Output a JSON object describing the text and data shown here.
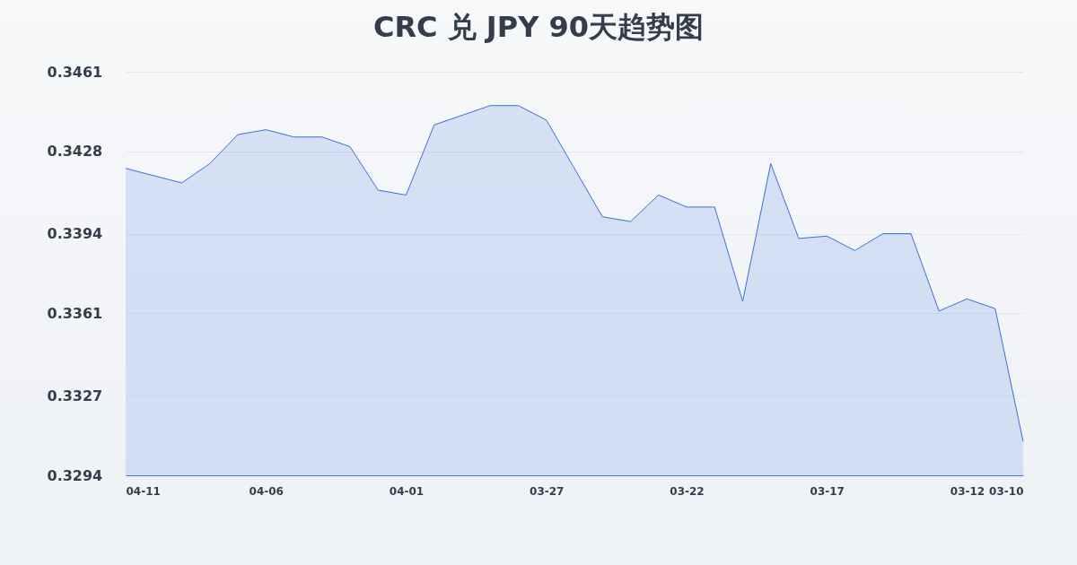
{
  "chart_data": {
    "type": "area",
    "title": "CRC 兑 JPY 90天趋势图",
    "x": [
      "--04-11",
      "--04-09",
      "--04-08",
      "--04-07",
      "--04-06",
      "--04-05",
      "--04-04",
      "--04-03",
      "--04-02",
      "--04-01",
      "--03-31",
      "--03-29",
      "--03-28",
      "--03-27",
      "--03-25",
      "--03-24",
      "--03-23",
      "--03-22",
      "--03-21",
      "--03-20",
      "--03-19",
      "--03-18",
      "--03-17",
      "--03-16",
      "--03-15",
      "--03-14",
      "--03-13",
      "--03-12",
      "--03-11",
      "--03-10"
    ],
    "series": [
      {
        "color": "#3a6fd8",
        "values": [
          0.3421,
          0.3415,
          0.3423,
          0.3435,
          0.3437,
          0.3434,
          0.3434,
          0.343,
          0.3412,
          0.341,
          0.3439,
          0.3447,
          0.3447,
          0.3441,
          0.3401,
          0.3399,
          0.341,
          0.3405,
          0.3405,
          0.3366,
          0.3423,
          0.3392,
          0.3393,
          0.3387,
          0.3394,
          0.3394,
          0.3362,
          0.3367,
          0.3363,
          0.3308
        ]
      }
    ],
    "xlim": [
      "--04-11",
      "--03-10"
    ],
    "xticks": [
      {
        "value": "--04-11",
        "label": "04-11"
      },
      {
        "value": "--04-06",
        "label": "04-06"
      },
      {
        "value": "--04-01",
        "label": "04-01"
      },
      {
        "value": "--03-27",
        "label": "03-27"
      },
      {
        "value": "--03-22",
        "label": "03-22"
      },
      {
        "value": "--03-17",
        "label": "03-17"
      },
      {
        "value": "--03-12",
        "label": "03-12"
      },
      {
        "value": "--03-10",
        "label": "03-10"
      }
    ],
    "ylim": [
      0.3294,
      0.3461
    ],
    "yticks": [
      0.3294,
      0.3327,
      0.3361,
      0.3394,
      0.3428,
      0.3461
    ],
    "grid": "y",
    "marker": "none",
    "line_style": "solid"
  }
}
